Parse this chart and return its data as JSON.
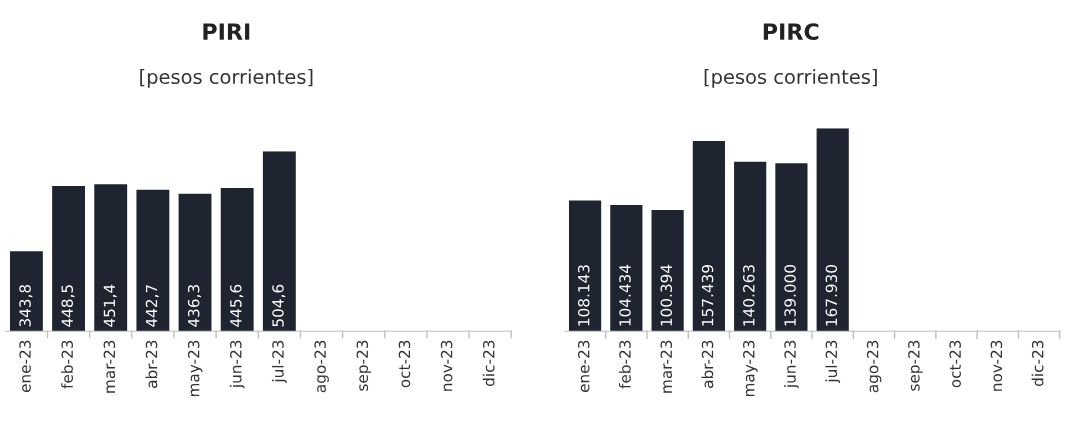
{
  "chart_data": [
    {
      "type": "bar",
      "title": "PIRI",
      "subtitle": "[pesos corrientes]",
      "categories": [
        "ene-23",
        "feb-23",
        "mar-23",
        "abr-23",
        "may-23",
        "jun-23",
        "jul-23",
        "ago-23",
        "sep-23",
        "oct-23",
        "nov-23",
        "dic-23"
      ],
      "values": [
        343.8,
        448.5,
        451.4,
        442.7,
        436.3,
        445.6,
        504.6,
        null,
        null,
        null,
        null,
        null
      ],
      "value_labels": [
        "343,8",
        "448,5",
        "451,4",
        "442,7",
        "436,3",
        "445,6",
        "504,6",
        null,
        null,
        null,
        null,
        null
      ],
      "color": "#1f2530",
      "ylim": [
        215,
        504.6
      ]
    },
    {
      "type": "bar",
      "title": "PIRC",
      "subtitle": "[pesos corrientes]",
      "categories": [
        "ene-23",
        "feb-23",
        "mar-23",
        "abr-23",
        "may-23",
        "jun-23",
        "jul-23",
        "ago-23",
        "sep-23",
        "oct-23",
        "nov-23",
        "dic-23"
      ],
      "values": [
        108143,
        104434,
        100394,
        157439,
        140263,
        139000,
        167930,
        null,
        null,
        null,
        null,
        null
      ],
      "value_labels": [
        "108.143",
        "104.434",
        "100.394",
        "157.439",
        "140.263",
        "139.000",
        "167.930",
        null,
        null,
        null,
        null,
        null
      ],
      "color": "#1f2530",
      "ylim": [
        0,
        167930
      ]
    }
  ]
}
